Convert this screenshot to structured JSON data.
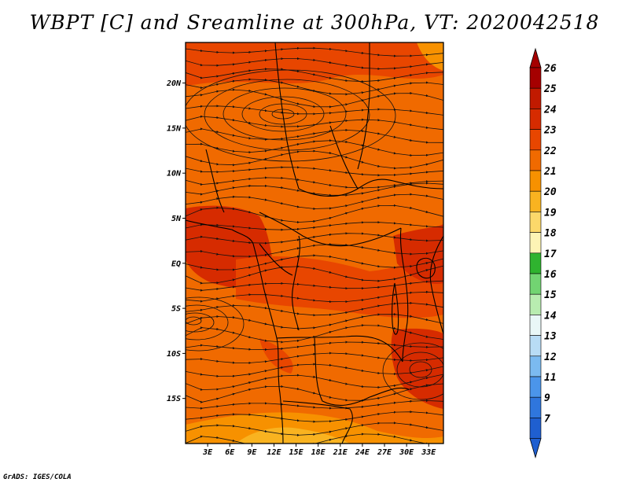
{
  "title": "WBPT [C] and Sreamline at 300hPa, VT: 2020042518",
  "credit": "GrADS: IGES/COLA",
  "map": {
    "lon_labels": [
      "3E",
      "6E",
      "9E",
      "12E",
      "15E",
      "18E",
      "21E",
      "24E",
      "27E",
      "30E",
      "33E"
    ],
    "lat_labels": [
      "20N",
      "15N",
      "10N",
      "5N",
      "EQ",
      "5S",
      "10S",
      "15S"
    ],
    "lon_range": [
      0,
      35
    ],
    "lat_range": [
      -20,
      24.5
    ]
  },
  "colorbar": {
    "labels": [
      "26",
      "25",
      "24",
      "23",
      "22",
      "21",
      "20",
      "19",
      "18",
      "17",
      "16",
      "15",
      "14",
      "13",
      "12",
      "11",
      "9",
      "7"
    ],
    "colors": [
      "#a50000",
      "#c11a00",
      "#d62b00",
      "#e84600",
      "#f06a00",
      "#f79100",
      "#f9b320",
      "#fcd86a",
      "#fdf4b5",
      "#2fb32f",
      "#72d472",
      "#b8ecb0",
      "#e9f7f7",
      "#b8dcf5",
      "#7bbaf0",
      "#4b95ea",
      "#2f76dd",
      "#1f5fd0"
    ],
    "over_color": "#a50000",
    "under_color": "#1f5fd0"
  },
  "field_colors": {
    "base": "#f06a00",
    "warm": "#e84600",
    "hot": "#d62b00",
    "cool": "#f79100",
    "cooler": "#f9b320"
  }
}
